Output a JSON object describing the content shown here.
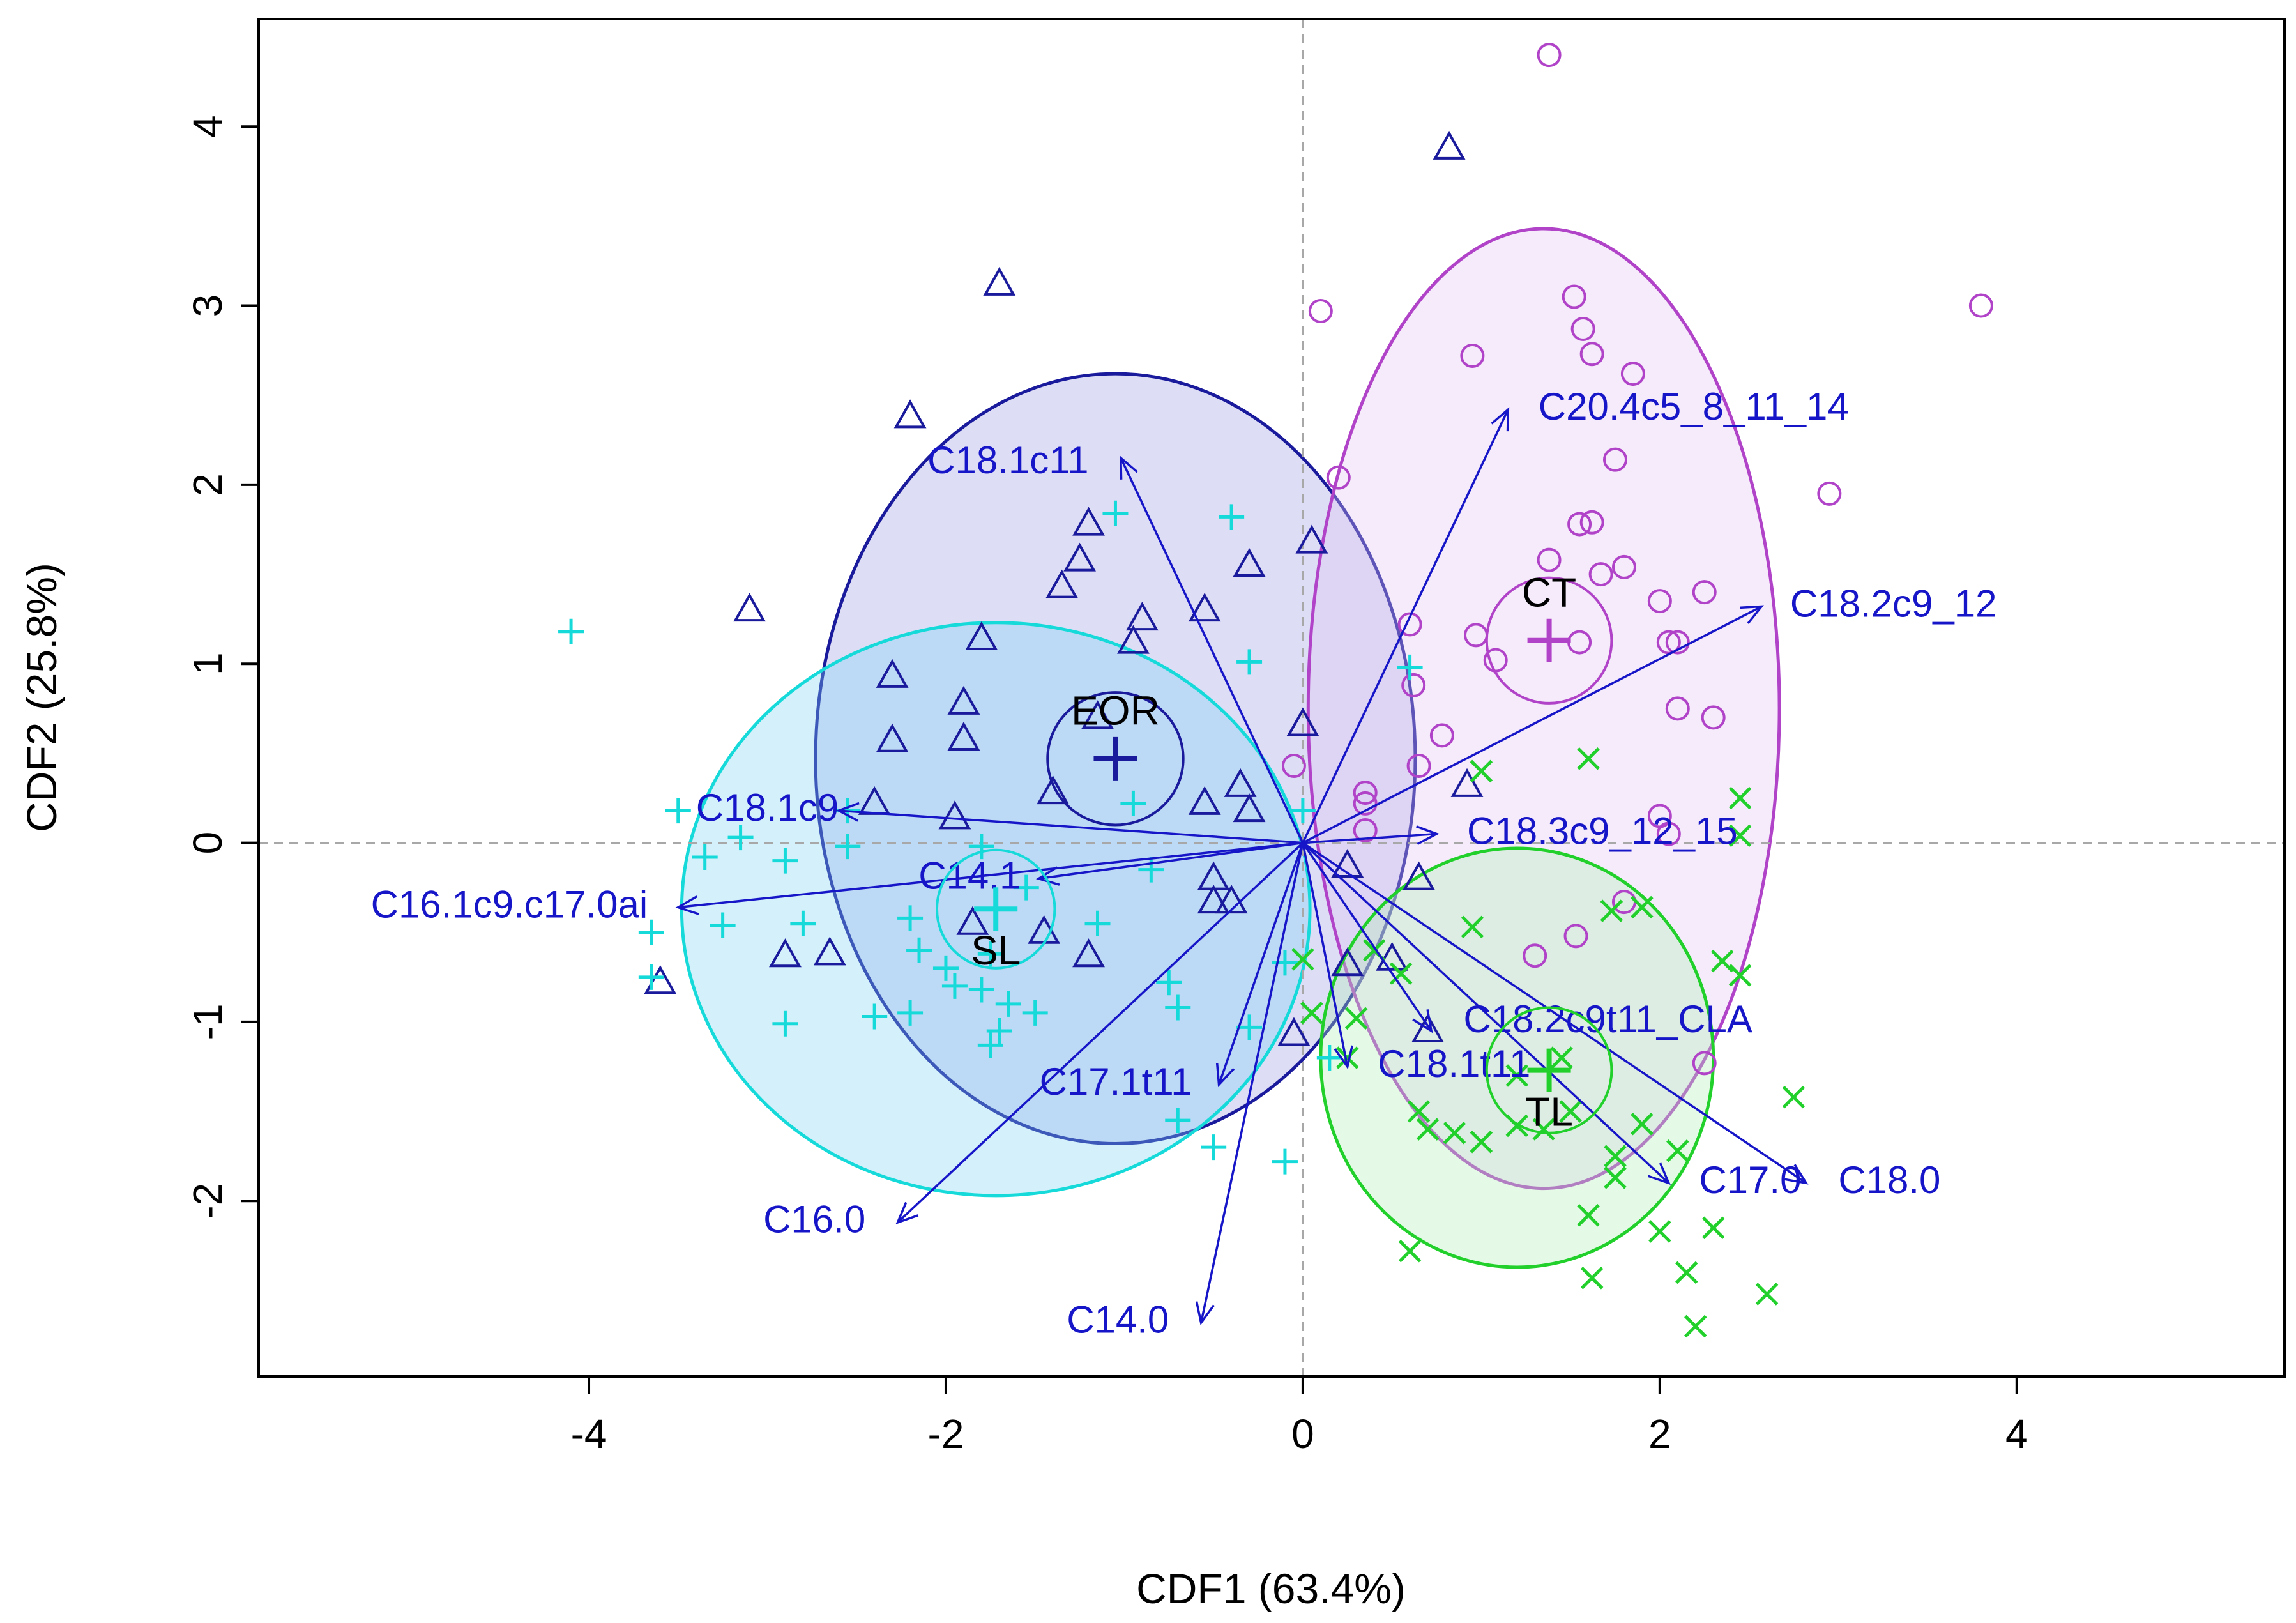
{
  "chart_data": {
    "type": "scatter",
    "subtype": "canonical discriminant biplot",
    "xlabel": "CDF1 (63.4%)",
    "ylabel": "CDF2 (25.8%)",
    "xlim": [
      -5.85,
      5.5
    ],
    "ylim": [
      -2.98,
      4.6
    ],
    "xticks": [
      -4,
      -2,
      0,
      2,
      4
    ],
    "yticks": [
      -2,
      -1,
      0,
      1,
      2,
      3,
      4
    ],
    "xtick_labels": [
      "-4",
      "-2",
      "0",
      "2",
      "4"
    ],
    "ytick_labels": [
      "-2",
      "-1",
      "0",
      "1",
      "2",
      "3",
      "4"
    ],
    "reference_lines": {
      "x": 0,
      "y": 0,
      "style": "dashed"
    },
    "groups": [
      {
        "name": "EOR",
        "marker": "triangle",
        "color": "#1a1a9c",
        "fill": "#9a9ae6",
        "centroid": [
          -1.05,
          0.47
        ],
        "center_ellipse": {
          "rx": 0.38,
          "ry": 0.37
        },
        "ellipse": {
          "cx": -1.05,
          "cy": 0.47,
          "rx": 1.68,
          "ry": 2.15
        },
        "points": [
          [
            -1.7,
            3.12
          ],
          [
            0.82,
            3.88
          ],
          [
            -2.2,
            2.38
          ],
          [
            -3.1,
            1.3
          ],
          [
            -1.2,
            1.78
          ],
          [
            -1.25,
            1.58
          ],
          [
            -1.35,
            1.43
          ],
          [
            -0.9,
            1.25
          ],
          [
            -0.95,
            1.12
          ],
          [
            -1.8,
            1.14
          ],
          [
            -2.3,
            0.93
          ],
          [
            -0.55,
            1.3
          ],
          [
            -0.3,
            1.55
          ],
          [
            0.05,
            1.68
          ],
          [
            -1.9,
            0.78
          ],
          [
            -1.9,
            0.58
          ],
          [
            -2.3,
            0.57
          ],
          [
            -1.15,
            0.7
          ],
          [
            0.0,
            0.66
          ],
          [
            -1.4,
            0.28
          ],
          [
            -0.35,
            0.32
          ],
          [
            -0.55,
            0.22
          ],
          [
            -0.3,
            0.18
          ],
          [
            -2.4,
            0.22
          ],
          [
            -1.95,
            0.14
          ],
          [
            0.92,
            0.32
          ],
          [
            -0.5,
            -0.2
          ],
          [
            -0.5,
            -0.33
          ],
          [
            -0.4,
            -0.33
          ],
          [
            -1.45,
            -0.5
          ],
          [
            -1.85,
            -0.45
          ],
          [
            -2.65,
            -0.62
          ],
          [
            -2.9,
            -0.63
          ],
          [
            -3.6,
            -0.78
          ],
          [
            -1.2,
            -0.63
          ],
          [
            0.25,
            -0.68
          ],
          [
            0.5,
            -0.65
          ],
          [
            0.65,
            -0.2
          ],
          [
            0.7,
            -1.05
          ],
          [
            -0.05,
            -1.07
          ],
          [
            0.25,
            -0.13
          ]
        ]
      },
      {
        "name": "CT",
        "marker": "circle",
        "color": "#b043c8",
        "fill": "#e2c3ef",
        "centroid": [
          1.38,
          1.13
        ],
        "center_ellipse": {
          "rx": 0.35,
          "ry": 0.35
        },
        "ellipse": {
          "cx": 1.35,
          "cy": 0.75,
          "rx": 1.32,
          "ry": 2.68
        },
        "points": [
          [
            1.38,
            4.4
          ],
          [
            3.8,
            3.0
          ],
          [
            0.1,
            2.97
          ],
          [
            1.52,
            3.05
          ],
          [
            1.57,
            2.87
          ],
          [
            1.62,
            2.73
          ],
          [
            0.95,
            2.72
          ],
          [
            1.85,
            2.62
          ],
          [
            0.2,
            2.04
          ],
          [
            2.95,
            1.95
          ],
          [
            1.75,
            2.14
          ],
          [
            1.55,
            1.78
          ],
          [
            1.62,
            1.79
          ],
          [
            1.38,
            1.58
          ],
          [
            1.67,
            1.5
          ],
          [
            1.8,
            1.54
          ],
          [
            2.0,
            1.35
          ],
          [
            2.25,
            1.4
          ],
          [
            0.6,
            1.22
          ],
          [
            0.97,
            1.16
          ],
          [
            1.08,
            1.02
          ],
          [
            1.55,
            1.12
          ],
          [
            2.05,
            1.12
          ],
          [
            2.1,
            1.12
          ],
          [
            2.1,
            0.75
          ],
          [
            2.3,
            0.7
          ],
          [
            0.62,
            0.88
          ],
          [
            0.78,
            0.6
          ],
          [
            0.35,
            0.28
          ],
          [
            0.35,
            0.22
          ],
          [
            0.35,
            0.07
          ],
          [
            0.65,
            0.43
          ],
          [
            -0.05,
            0.43
          ],
          [
            2.0,
            0.15
          ],
          [
            2.05,
            0.05
          ],
          [
            1.8,
            -0.33
          ],
          [
            1.53,
            -0.52
          ],
          [
            1.3,
            -0.63
          ],
          [
            2.25,
            -1.23
          ]
        ]
      },
      {
        "name": "SL",
        "marker": "plus",
        "color": "#16dada",
        "fill": "#7dd4f2",
        "centroid": [
          -1.72,
          -0.37
        ],
        "center_ellipse": {
          "rx": 0.33,
          "ry": 0.33
        },
        "ellipse": {
          "cx": -1.72,
          "cy": -0.37,
          "rx": 1.76,
          "ry": 1.6
        },
        "points": [
          [
            -4.1,
            1.18
          ],
          [
            -1.05,
            1.84
          ],
          [
            -0.4,
            1.82
          ],
          [
            -0.3,
            1.01
          ],
          [
            0.6,
            0.98
          ],
          [
            -0.95,
            0.22
          ],
          [
            -2.55,
            0.18
          ],
          [
            0.0,
            0.18
          ],
          [
            -3.5,
            0.18
          ],
          [
            -3.15,
            0.03
          ],
          [
            -3.35,
            -0.08
          ],
          [
            -2.9,
            -0.1
          ],
          [
            -2.55,
            -0.02
          ],
          [
            -3.65,
            -0.5
          ],
          [
            -3.25,
            -0.46
          ],
          [
            -2.8,
            -0.45
          ],
          [
            -1.8,
            -0.02
          ],
          [
            -1.55,
            -0.25
          ],
          [
            -1.15,
            -0.45
          ],
          [
            -1.75,
            -0.62
          ],
          [
            -2.15,
            -0.6
          ],
          [
            -2.0,
            -0.7
          ],
          [
            -1.8,
            -0.82
          ],
          [
            -1.65,
            -0.9
          ],
          [
            -1.95,
            -0.8
          ],
          [
            -2.2,
            -0.95
          ],
          [
            -2.4,
            -0.97
          ],
          [
            -2.9,
            -1.01
          ],
          [
            -3.65,
            -0.75
          ],
          [
            -0.75,
            -0.78
          ],
          [
            -0.7,
            -0.92
          ],
          [
            -1.5,
            -0.95
          ],
          [
            -1.7,
            -1.05
          ],
          [
            -1.75,
            -1.13
          ],
          [
            -2.2,
            -0.42
          ],
          [
            -0.3,
            -1.03
          ],
          [
            -0.7,
            -1.55
          ],
          [
            -0.5,
            -1.7
          ],
          [
            -0.1,
            -1.78
          ],
          [
            0.15,
            -1.2
          ],
          [
            -0.1,
            -0.67
          ],
          [
            -0.85,
            -0.15
          ]
        ]
      },
      {
        "name": "TL",
        "marker": "cross",
        "color": "#22d02c",
        "fill": "#b3f0b6",
        "centroid": [
          1.38,
          -1.27
        ],
        "center_ellipse": {
          "rx": 0.35,
          "ry": 0.35
        },
        "ellipse": {
          "cx": 1.2,
          "cy": -1.2,
          "rx": 1.1,
          "ry": 1.17
        },
        "points": [
          [
            1.0,
            0.4
          ],
          [
            1.6,
            0.47
          ],
          [
            2.45,
            0.25
          ],
          [
            2.45,
            0.04
          ],
          [
            1.9,
            -0.36
          ],
          [
            1.73,
            -0.38
          ],
          [
            0.95,
            -0.47
          ],
          [
            2.35,
            -0.66
          ],
          [
            2.45,
            -0.74
          ],
          [
            0.0,
            -0.65
          ],
          [
            0.05,
            -0.95
          ],
          [
            0.25,
            -1.2
          ],
          [
            0.3,
            -0.98
          ],
          [
            0.4,
            -0.6
          ],
          [
            0.55,
            -0.73
          ],
          [
            0.65,
            -1.5
          ],
          [
            0.7,
            -1.6
          ],
          [
            0.85,
            -1.62
          ],
          [
            1.0,
            -1.67
          ],
          [
            1.2,
            -1.58
          ],
          [
            1.35,
            -1.6
          ],
          [
            1.5,
            -1.5
          ],
          [
            1.9,
            -1.57
          ],
          [
            1.75,
            -1.75
          ],
          [
            1.75,
            -1.87
          ],
          [
            2.1,
            -1.72
          ],
          [
            2.75,
            -1.42
          ],
          [
            1.6,
            -2.08
          ],
          [
            2.0,
            -2.17
          ],
          [
            2.3,
            -2.15
          ],
          [
            2.15,
            -2.4
          ],
          [
            1.62,
            -2.43
          ],
          [
            0.6,
            -2.28
          ],
          [
            2.6,
            -2.52
          ],
          [
            2.2,
            -2.7
          ],
          [
            1.2,
            -1.3
          ],
          [
            1.45,
            -1.2
          ]
        ]
      }
    ],
    "vectors": [
      {
        "label": "C20.4c5_8_11_14",
        "x": 1.15,
        "y": 2.42,
        "label_x": 1.32,
        "label_y": 2.42,
        "anchor": "start"
      },
      {
        "label": "C18.1c11",
        "x": -1.02,
        "y": 2.15,
        "label_x": -1.2,
        "label_y": 2.12,
        "anchor": "end"
      },
      {
        "label": "C18.2c9_12",
        "x": 2.57,
        "y": 1.32,
        "label_x": 2.73,
        "label_y": 1.32,
        "anchor": "start"
      },
      {
        "label": "C18.1c9",
        "x": -2.6,
        "y": 0.18,
        "label_x": -2.6,
        "label_y": 0.18,
        "anchor": "end"
      },
      {
        "label": "C18.3c9_12_15",
        "x": 0.75,
        "y": 0.05,
        "label_x": 0.92,
        "label_y": 0.05,
        "anchor": "start"
      },
      {
        "label": "C14.1",
        "x": -1.48,
        "y": -0.2,
        "label_x": -1.58,
        "label_y": -0.2,
        "anchor": "end"
      },
      {
        "label": "C16.1c9.c17.0ai",
        "x": -3.5,
        "y": -0.36,
        "label_x": -3.67,
        "label_y": -0.36,
        "anchor": "end"
      },
      {
        "label": "C18.2c9t11_CLA",
        "x": 0.72,
        "y": -1.05,
        "label_x": 0.9,
        "label_y": -1.0,
        "anchor": "start"
      },
      {
        "label": "C18.1t11",
        "x": 0.25,
        "y": -1.25,
        "label_x": 0.42,
        "label_y": -1.25,
        "anchor": "start"
      },
      {
        "label": "C17.1t11",
        "x": -0.47,
        "y": -1.35,
        "label_x": -0.62,
        "label_y": -1.35,
        "anchor": "end"
      },
      {
        "label": "C17.0",
        "x": 2.05,
        "y": -1.9,
        "label_x": 2.22,
        "label_y": -1.9,
        "anchor": "start"
      },
      {
        "label": "C18.0",
        "x": 2.82,
        "y": -1.9,
        "label_x": 3.0,
        "label_y": -1.9,
        "anchor": "start"
      },
      {
        "label": "C16.0",
        "x": -2.27,
        "y": -2.12,
        "label_x": -2.45,
        "label_y": -2.12,
        "anchor": "end"
      },
      {
        "label": "C14.0",
        "x": -0.57,
        "y": -2.68,
        "label_x": -0.75,
        "label_y": -2.68,
        "anchor": "end"
      }
    ],
    "vector_color": "#1616c8"
  }
}
